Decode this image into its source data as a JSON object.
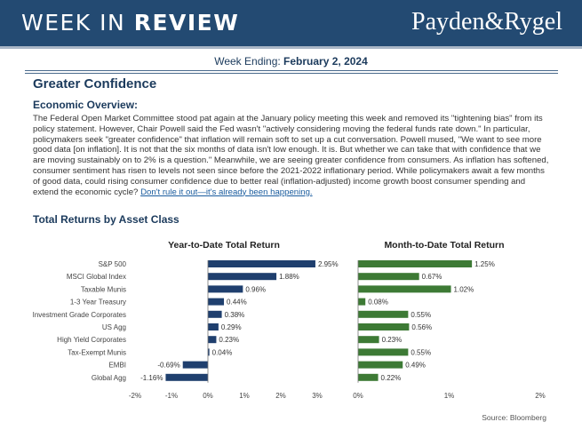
{
  "header": {
    "title_prefix": "WEEK IN ",
    "title_bold": "REVIEW",
    "logo": "Payden&Rygel"
  },
  "week": {
    "label": "Week Ending: ",
    "date": "February 2, 2024"
  },
  "headline": "Greater Confidence",
  "economic": {
    "heading": "Economic Overview:",
    "body": "The Federal Open Market Committee stood pat again at the January policy meeting this week and removed its \"tightening bias\" from its policy statement. However, Chair Powell said the Fed wasn't \"actively considering moving the federal funds rate down.\" In particular, policymakers seek \"greater confidence\" that inflation will remain soft to set up a cut conversation. Powell mused, \"We want to see more good data [on inflation]. It is not that the six months of data isn't low enough. It is. But whether we can take that with confidence that we are moving sustainably on to 2% is a question.\" Meanwhile, we are seeing greater confidence from consumers. As inflation has softened, consumer sentiment has risen to levels not seen since before the 2021-2022 inflationary period. While policymakers await a few months of good data, could rising consumer confidence due to better real (inflation-adjusted) income growth boost consumer spending and extend the economic cycle? ",
    "link": "Don't rule it out—it's already been happening."
  },
  "section_title": "Total Returns by Asset Class",
  "source": "Source: Bloomberg",
  "chart_data": [
    {
      "type": "bar",
      "orientation": "horizontal",
      "title": "Year-to-Date Total Return",
      "categories": [
        "S&P 500",
        "MSCI Global Index",
        "Taxable Munis",
        "1-3 Year Treasury",
        "Investment Grade Corporates",
        "US Agg",
        "High Yield Corporates",
        "Tax-Exempt Munis",
        "EMBI",
        "Global Agg"
      ],
      "values": [
        2.95,
        1.88,
        0.96,
        0.44,
        0.38,
        0.29,
        0.23,
        0.04,
        -0.69,
        -1.16
      ],
      "labels": [
        "2.95%",
        "1.88%",
        "0.96%",
        "0.44%",
        "0.38%",
        "0.29%",
        "0.23%",
        "0.04%",
        "-0.69%",
        "-1.16%"
      ],
      "xlim": [
        -2,
        3
      ],
      "ticks": [
        -2,
        -1,
        0,
        1,
        2,
        3
      ],
      "tick_labels": [
        "-2%",
        "-1%",
        "0%",
        "1%",
        "2%",
        "3%"
      ],
      "color": "#1f3f6e"
    },
    {
      "type": "bar",
      "orientation": "horizontal",
      "title": "Month-to-Date Total Return",
      "categories": [
        "S&P 500",
        "MSCI Global Index",
        "Taxable Munis",
        "1-3 Year Treasury",
        "Investment Grade Corporates",
        "US Agg",
        "High Yield Corporates",
        "Tax-Exempt Munis",
        "EMBI",
        "Global Agg"
      ],
      "values": [
        1.25,
        0.67,
        1.02,
        0.08,
        0.55,
        0.56,
        0.23,
        0.55,
        0.49,
        0.22
      ],
      "labels": [
        "1.25%",
        "0.67%",
        "1.02%",
        "0.08%",
        "0.55%",
        "0.56%",
        "0.23%",
        "0.55%",
        "0.49%",
        "0.22%"
      ],
      "xlim": [
        0,
        2
      ],
      "ticks": [
        0,
        1,
        2
      ],
      "tick_labels": [
        "0%",
        "1%",
        "2%"
      ],
      "color": "#3d7a35"
    }
  ]
}
